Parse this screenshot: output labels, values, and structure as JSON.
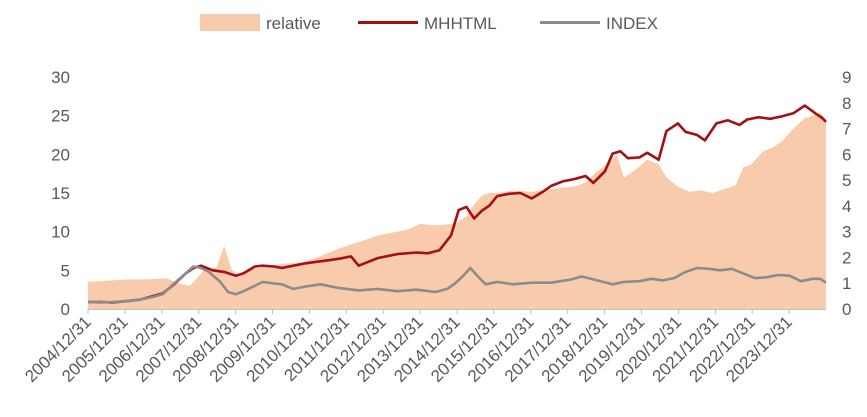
{
  "chart_data": {
    "type": "line",
    "title": "",
    "legend": {
      "position": "top",
      "entries": [
        {
          "name": "relative",
          "kind": "area",
          "color": "#F8CBAD"
        },
        {
          "name": "MHHTML",
          "kind": "line",
          "color": "#A50F15"
        },
        {
          "name": "INDEX",
          "kind": "line",
          "color": "#8C8C8C"
        }
      ]
    },
    "x_tick_labels": [
      "2004/12/31",
      "2005/12/31",
      "2006/12/31",
      "2007/12/31",
      "2008/12/31",
      "2009/12/31",
      "2010/12/31",
      "2011/12/31",
      "2012/12/31",
      "2013/12/31",
      "2014/12/31",
      "2015/12/31",
      "2016/12/31",
      "2017/12/31",
      "2018/12/31",
      "2019/12/31",
      "2020/12/31",
      "2021/12/31",
      "2022/12/31",
      "2023/12/31"
    ],
    "y_left": {
      "min": 0,
      "max": 30,
      "ticks": [
        0,
        5,
        10,
        15,
        20,
        25,
        30
      ]
    },
    "y_right": {
      "min": 0,
      "max": 9,
      "ticks": [
        0,
        1,
        2,
        3,
        4,
        5,
        6,
        7,
        8,
        9
      ]
    },
    "grid": false,
    "series": [
      {
        "name": "relative",
        "type": "area",
        "axis": "right",
        "color": "#F8CBAD",
        "x": [
          2004.96,
          2005.5,
          2006.0,
          2006.5,
          2007.0,
          2007.3,
          2007.6,
          2007.8,
          2008.0,
          2008.3,
          2008.5,
          2008.7,
          2008.9,
          2009.2,
          2009.5,
          2009.8,
          2010.0,
          2010.5,
          2011.0,
          2011.5,
          2012.0,
          2012.5,
          2013.0,
          2013.3,
          2013.6,
          2014.0,
          2014.5,
          2014.8,
          2015.0,
          2015.2,
          2015.4,
          2015.6,
          2015.8,
          2016.0,
          2016.5,
          2017.0,
          2017.3,
          2017.6,
          2017.9,
          2018.2,
          2018.5,
          2018.7,
          2018.9,
          2019.2,
          2019.5,
          2019.8,
          2020.0,
          2020.3,
          2020.6,
          2020.9,
          2021.2,
          2021.5,
          2021.8,
          2022.0,
          2022.2,
          2022.5,
          2022.8,
          2023.0,
          2023.3,
          2023.6,
          2023.8,
          2024.0,
          2024.15
        ],
        "values": [
          1.05,
          1.1,
          1.15,
          1.15,
          1.2,
          1.0,
          0.9,
          1.2,
          1.55,
          1.6,
          2.45,
          1.5,
          1.3,
          1.55,
          1.6,
          1.7,
          1.75,
          1.8,
          2.05,
          2.35,
          2.6,
          2.85,
          3.0,
          3.1,
          3.3,
          3.25,
          3.3,
          3.6,
          4.05,
          4.4,
          4.5,
          4.5,
          4.55,
          4.6,
          4.55,
          4.65,
          4.7,
          4.75,
          4.9,
          5.35,
          5.65,
          6.0,
          5.1,
          5.4,
          5.8,
          5.6,
          5.1,
          4.75,
          4.55,
          4.6,
          4.5,
          4.65,
          4.8,
          5.5,
          5.6,
          6.1,
          6.3,
          6.5,
          7.0,
          7.4,
          7.5,
          7.6,
          7.35
        ]
      },
      {
        "name": "MHHTML",
        "type": "line",
        "axis": "left",
        "color": "#A50F15",
        "x": [
          2004.96,
          2005.3,
          2005.6,
          2005.9,
          2006.3,
          2006.6,
          2006.9,
          2007.2,
          2007.5,
          2007.7,
          2007.9,
          2008.2,
          2008.5,
          2008.8,
          2009.0,
          2009.3,
          2009.5,
          2009.8,
          2010.0,
          2010.3,
          2010.6,
          2010.9,
          2011.2,
          2011.5,
          2011.8,
          2012.0,
          2012.5,
          2013.0,
          2013.5,
          2013.8,
          2014.1,
          2014.4,
          2014.6,
          2014.8,
          2015.0,
          2015.2,
          2015.4,
          2015.6,
          2015.9,
          2016.2,
          2016.5,
          2016.8,
          2017.0,
          2017.3,
          2017.6,
          2017.9,
          2018.1,
          2018.4,
          2018.6,
          2018.8,
          2019.0,
          2019.3,
          2019.5,
          2019.8,
          2020.0,
          2020.3,
          2020.5,
          2020.8,
          2021.0,
          2021.3,
          2021.6,
          2021.9,
          2022.1,
          2022.4,
          2022.7,
          2023.0,
          2023.3,
          2023.6,
          2023.9,
          2024.05,
          2024.15
        ],
        "values": [
          0.9,
          0.9,
          0.85,
          1.0,
          1.2,
          1.6,
          2.0,
          3.2,
          4.6,
          5.3,
          5.6,
          5.0,
          4.8,
          4.3,
          4.6,
          5.5,
          5.6,
          5.5,
          5.3,
          5.6,
          5.9,
          6.1,
          6.3,
          6.5,
          6.8,
          5.6,
          6.6,
          7.1,
          7.3,
          7.2,
          7.6,
          9.5,
          12.8,
          13.2,
          11.7,
          12.7,
          13.4,
          14.6,
          14.9,
          15.0,
          14.3,
          15.2,
          15.9,
          16.5,
          16.8,
          17.2,
          16.3,
          17.8,
          20.1,
          20.4,
          19.5,
          19.6,
          20.2,
          19.3,
          23.0,
          24.0,
          22.9,
          22.5,
          21.8,
          24.0,
          24.4,
          23.8,
          24.5,
          24.8,
          24.6,
          24.9,
          25.3,
          26.3,
          25.2,
          24.7,
          24.2
        ]
      },
      {
        "name": "INDEX",
        "type": "line",
        "axis": "left",
        "color": "#8C8C8C",
        "x": [
          2004.96,
          2005.3,
          2005.6,
          2005.9,
          2006.3,
          2006.6,
          2006.9,
          2007.2,
          2007.5,
          2007.7,
          2007.9,
          2008.1,
          2008.4,
          2008.6,
          2008.8,
          2009.0,
          2009.3,
          2009.5,
          2009.8,
          2010.0,
          2010.3,
          2010.6,
          2011.0,
          2011.5,
          2012.0,
          2012.5,
          2013.0,
          2013.5,
          2014.0,
          2014.3,
          2014.5,
          2014.7,
          2014.9,
          2015.1,
          2015.3,
          2015.6,
          2016.0,
          2016.5,
          2017.0,
          2017.5,
          2017.8,
          2018.2,
          2018.6,
          2018.9,
          2019.3,
          2019.6,
          2019.9,
          2020.2,
          2020.5,
          2020.8,
          2021.1,
          2021.4,
          2021.7,
          2022.0,
          2022.3,
          2022.6,
          2022.9,
          2023.2,
          2023.5,
          2023.8,
          2024.0,
          2024.15
        ],
        "values": [
          0.9,
          0.85,
          0.9,
          1.0,
          1.2,
          1.5,
          1.9,
          3.3,
          4.6,
          5.5,
          5.3,
          4.8,
          3.5,
          2.2,
          1.9,
          2.3,
          3.0,
          3.5,
          3.3,
          3.2,
          2.6,
          2.9,
          3.2,
          2.7,
          2.4,
          2.6,
          2.3,
          2.5,
          2.2,
          2.6,
          3.3,
          4.2,
          5.3,
          4.2,
          3.2,
          3.5,
          3.2,
          3.4,
          3.4,
          3.8,
          4.2,
          3.7,
          3.2,
          3.5,
          3.6,
          3.9,
          3.7,
          4.0,
          4.8,
          5.3,
          5.2,
          5.0,
          5.2,
          4.6,
          4.0,
          4.1,
          4.4,
          4.3,
          3.6,
          3.9,
          3.9,
          3.4
        ]
      }
    ]
  }
}
